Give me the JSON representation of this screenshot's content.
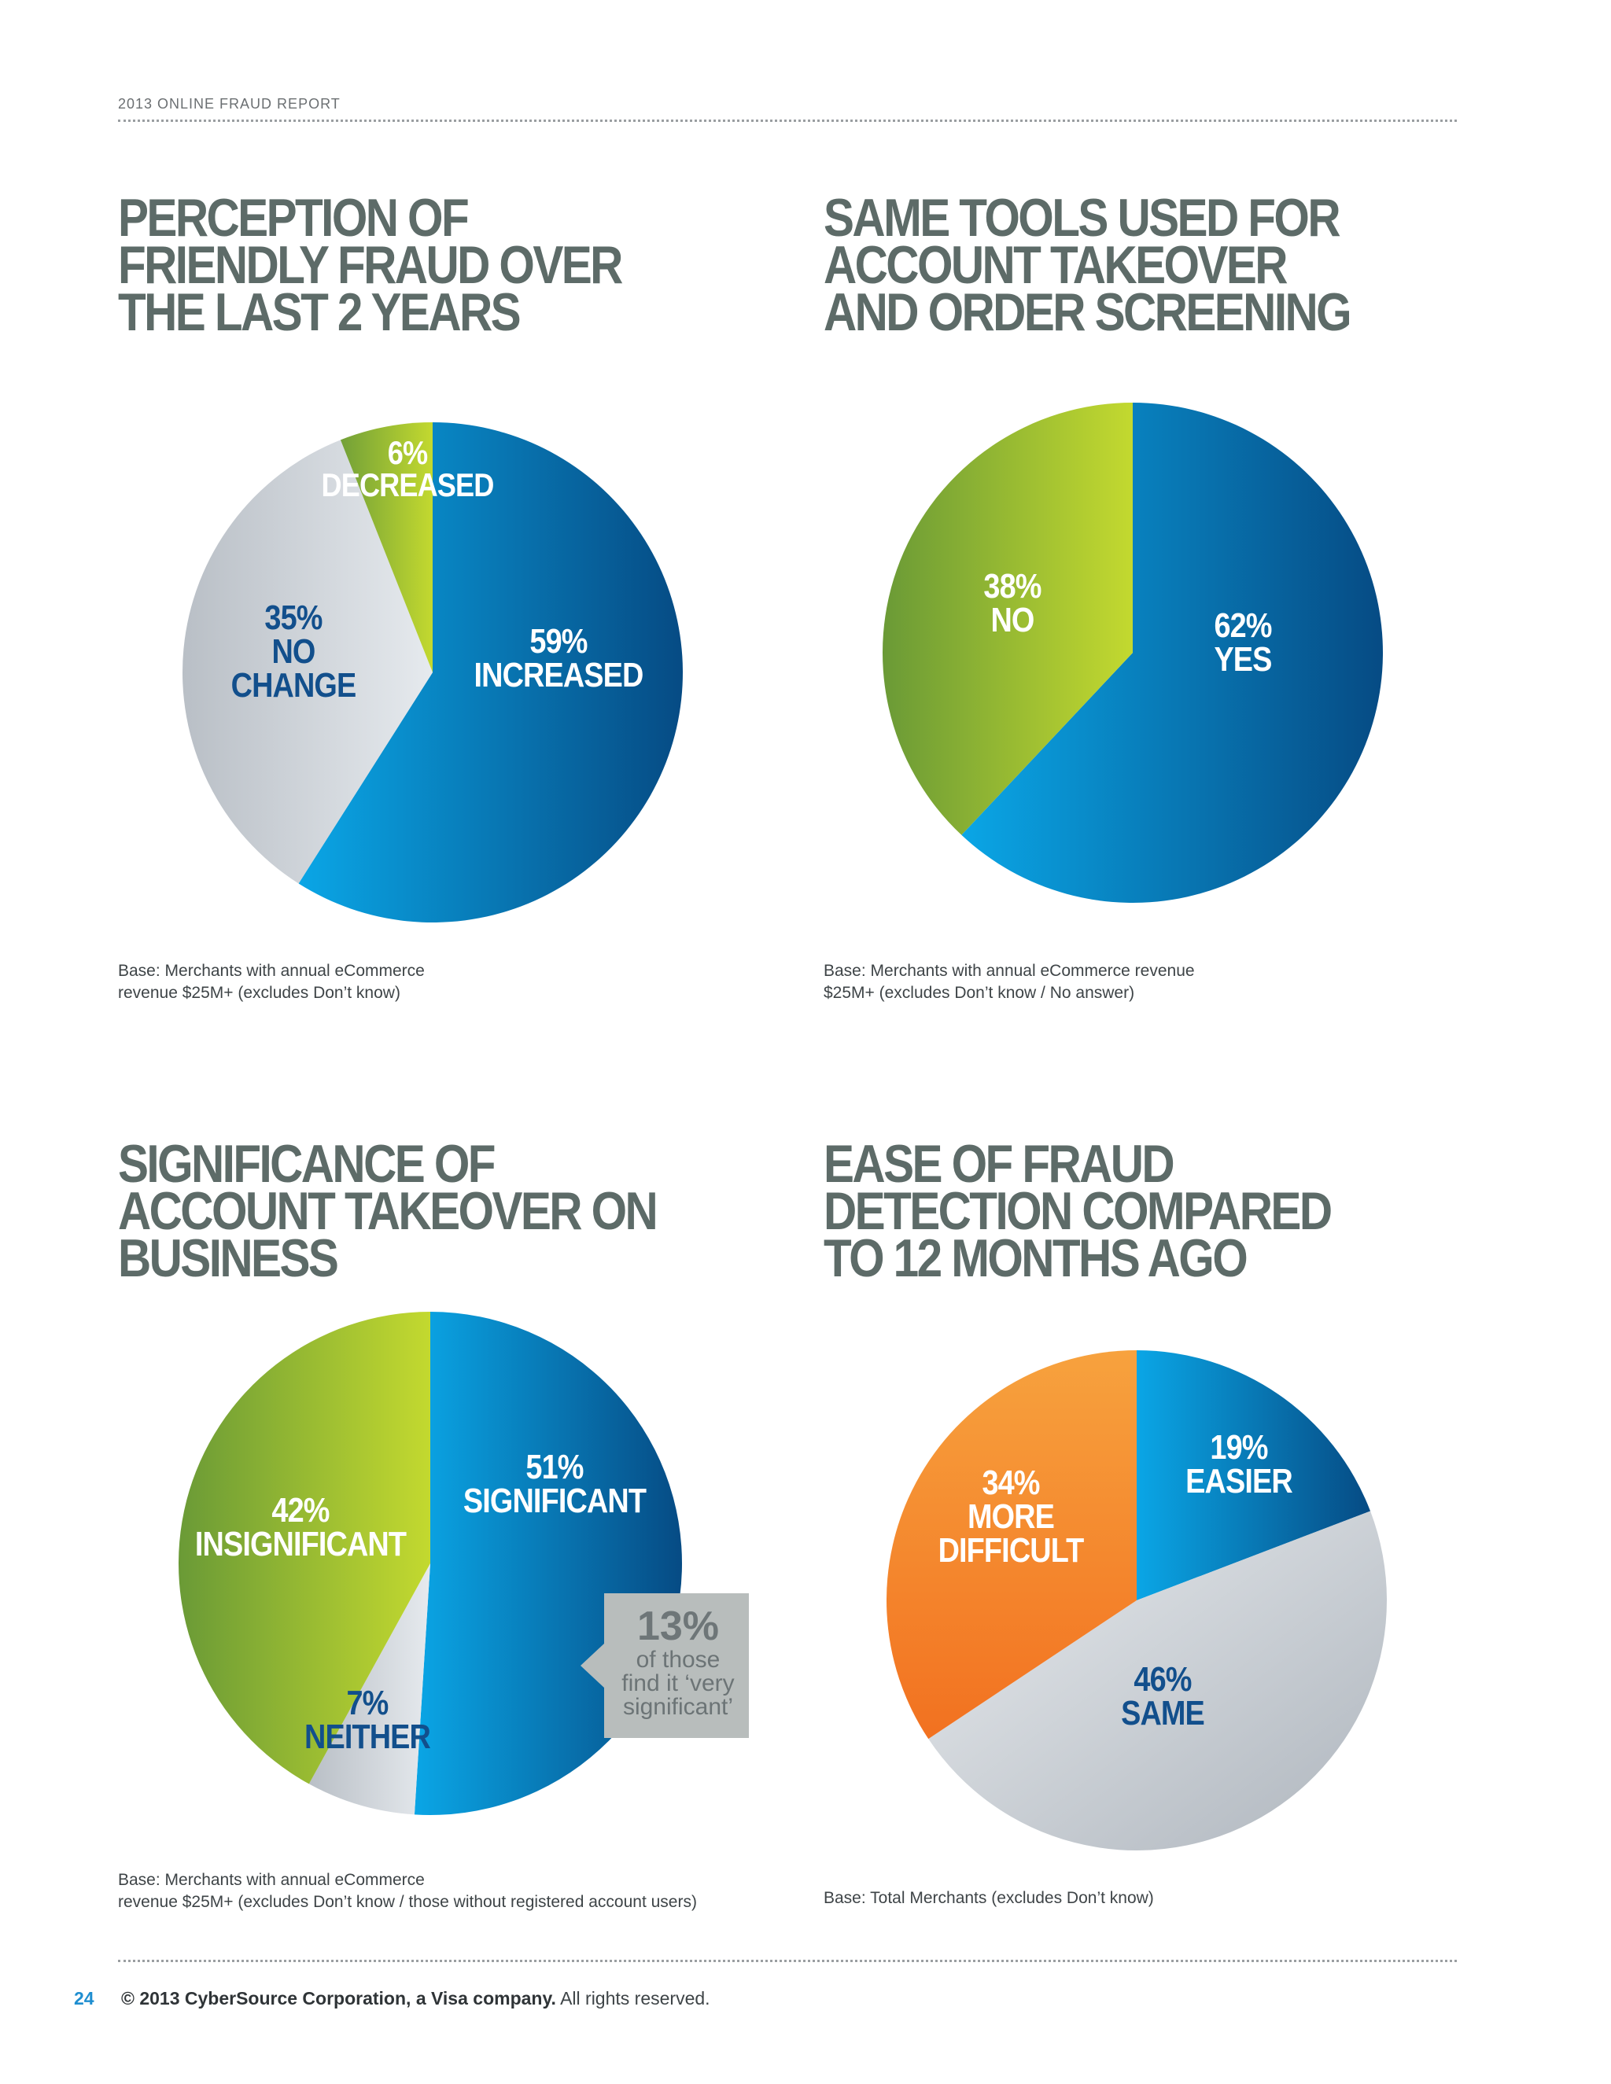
{
  "header": {
    "report_title": "2013 ONLINE FRAUD REPORT"
  },
  "colors": {
    "title": "#5d6b68",
    "blue_dark": "#0a4d86",
    "blue_light": "#0aa0e0",
    "green_light": "#bcd431",
    "green_dark": "#6a9a36",
    "gray": "#c9cfd6",
    "orange": "#f58a2c"
  },
  "chart_data": [
    {
      "type": "pie",
      "title": "PERCEPTION OF FRIENDLY FRAUD OVER THE LAST 2 YEARS",
      "slices": [
        {
          "label": "INCREASED",
          "value": 59,
          "value_text": "59%"
        },
        {
          "label": "NO CHANGE",
          "value": 35,
          "value_text": "35%"
        },
        {
          "label": "DECREASED",
          "value": 6,
          "value_text": "6%"
        }
      ],
      "base_note": [
        "Base: Merchants with annual eCommerce",
        "revenue $25M+ (excludes Don’t know)"
      ]
    },
    {
      "type": "pie",
      "title": "SAME TOOLS USED FOR ACCOUNT TAKEOVER AND ORDER SCREENING",
      "slices": [
        {
          "label": "YES",
          "value": 62,
          "value_text": "62%"
        },
        {
          "label": "NO",
          "value": 38,
          "value_text": "38%"
        }
      ],
      "base_note": [
        "Base: Merchants with annual eCommerce revenue",
        "$25M+ (excludes Don’t know / No answer)"
      ]
    },
    {
      "type": "pie",
      "title": "SIGNIFICANCE OF ACCOUNT TAKEOVER ON BUSINESS",
      "slices": [
        {
          "label": "SIGNIFICANT",
          "value": 51,
          "value_text": "51%"
        },
        {
          "label": "NEITHER",
          "value": 7,
          "value_text": "7%"
        },
        {
          "label": "INSIGNIFICANT",
          "value": 42,
          "value_text": "42%"
        }
      ],
      "callout": {
        "value": "13%",
        "text": [
          "of those",
          "find it ‘very",
          "significant’"
        ]
      },
      "base_note": [
        "Base: Merchants with annual eCommerce",
        "revenue $25M+ (excludes Don’t know / those without registered account users)"
      ]
    },
    {
      "type": "pie",
      "title": "EASE OF FRAUD DETECTION COMPARED TO 12 MONTHS AGO",
      "slices": [
        {
          "label": "EASIER",
          "value": 19,
          "value_text": "19%"
        },
        {
          "label": "SAME",
          "value": 46,
          "value_text": "46%"
        },
        {
          "label": "MORE DIFFICULT",
          "value": 34,
          "value_text": "34%"
        }
      ],
      "base_note": [
        "Base: Total Merchants (excludes Don’t know)"
      ]
    }
  ],
  "footer": {
    "page_number": "24",
    "copyright": "© 2013 CyberSource Corporation, a Visa company.",
    "rights": "All rights reserved."
  }
}
